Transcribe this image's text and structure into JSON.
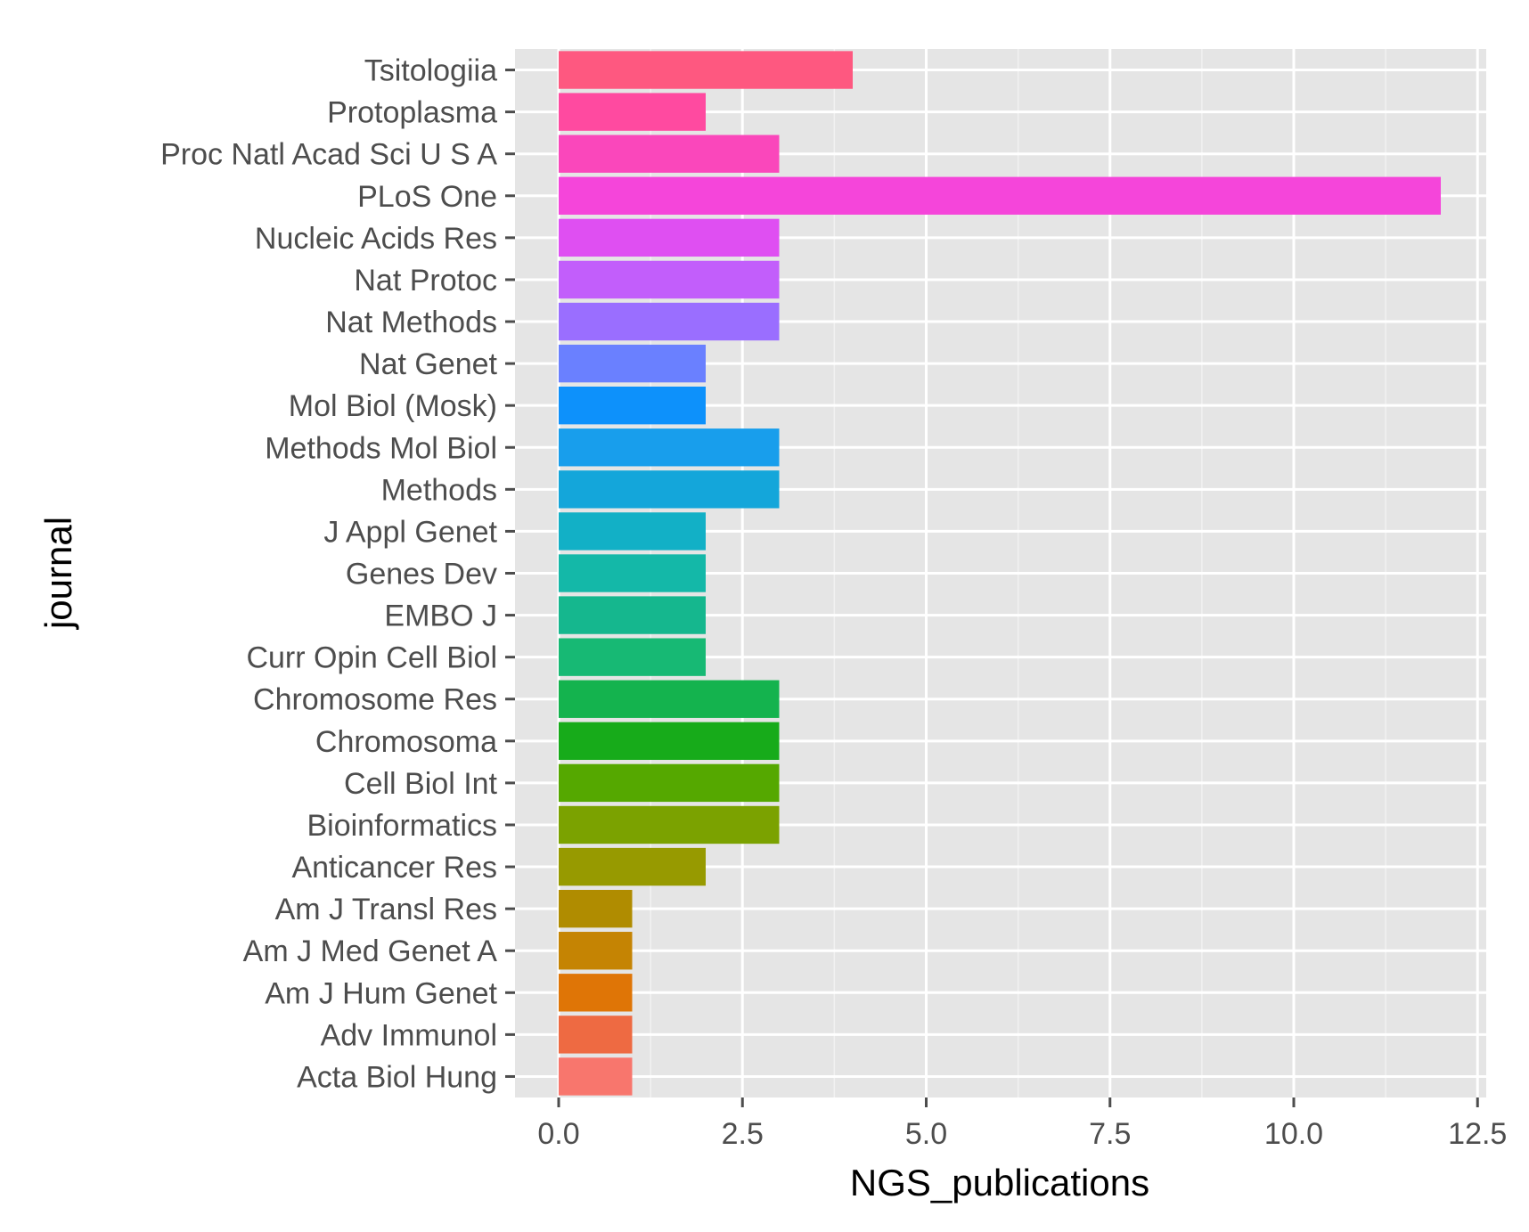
{
  "chart_data": {
    "type": "bar",
    "orientation": "horizontal",
    "xlabel": "NGS_publications",
    "ylabel": "journal",
    "xlim": [
      -0.28,
      12.6
    ],
    "x_ticks": [
      "0.0",
      "2.5",
      "5.0",
      "7.5",
      "10.0",
      "12.5"
    ],
    "x_tick_values": [
      0,
      2.5,
      5,
      7.5,
      10,
      12.5
    ],
    "grid": true,
    "legend": "none",
    "categories": [
      "Acta Biol Hung",
      "Adv Immunol",
      "Am J Hum Genet",
      "Am J Med Genet A",
      "Am J Transl Res",
      "Anticancer Res",
      "Bioinformatics",
      "Cell Biol Int",
      "Chromosoma",
      "Chromosome Res",
      "Curr Opin Cell Biol",
      "EMBO J",
      "Genes Dev",
      "J Appl Genet",
      "Methods",
      "Methods Mol Biol",
      "Mol Biol (Mosk)",
      "Nat Genet",
      "Nat Methods",
      "Nat Protoc",
      "Nucleic Acids Res",
      "PLoS One",
      "Proc Natl Acad Sci U S A",
      "Protoplasma",
      "Tsitologiia"
    ],
    "values": [
      1,
      1,
      1,
      1,
      1,
      2,
      3,
      3,
      3,
      3,
      2,
      2,
      2,
      2,
      3,
      3,
      2,
      2,
      3,
      3,
      3,
      12,
      3,
      2,
      4
    ],
    "colors": [
      "#F8766D",
      "#EE6A42",
      "#DF7506",
      "#C58403",
      "#B08C00",
      "#979A00",
      "#7BA200",
      "#55A800",
      "#17AB1A",
      "#14B34E",
      "#17B974",
      "#15B78E",
      "#14B8A8",
      "#12B0C6",
      "#14A6DA",
      "#189EEC",
      "#0D91FB",
      "#6A80FF",
      "#9A6EFF",
      "#C25EFB",
      "#DF4FF2",
      "#F545DA",
      "#FA47BB",
      "#FF4AA0",
      "#FE5880"
    ]
  }
}
